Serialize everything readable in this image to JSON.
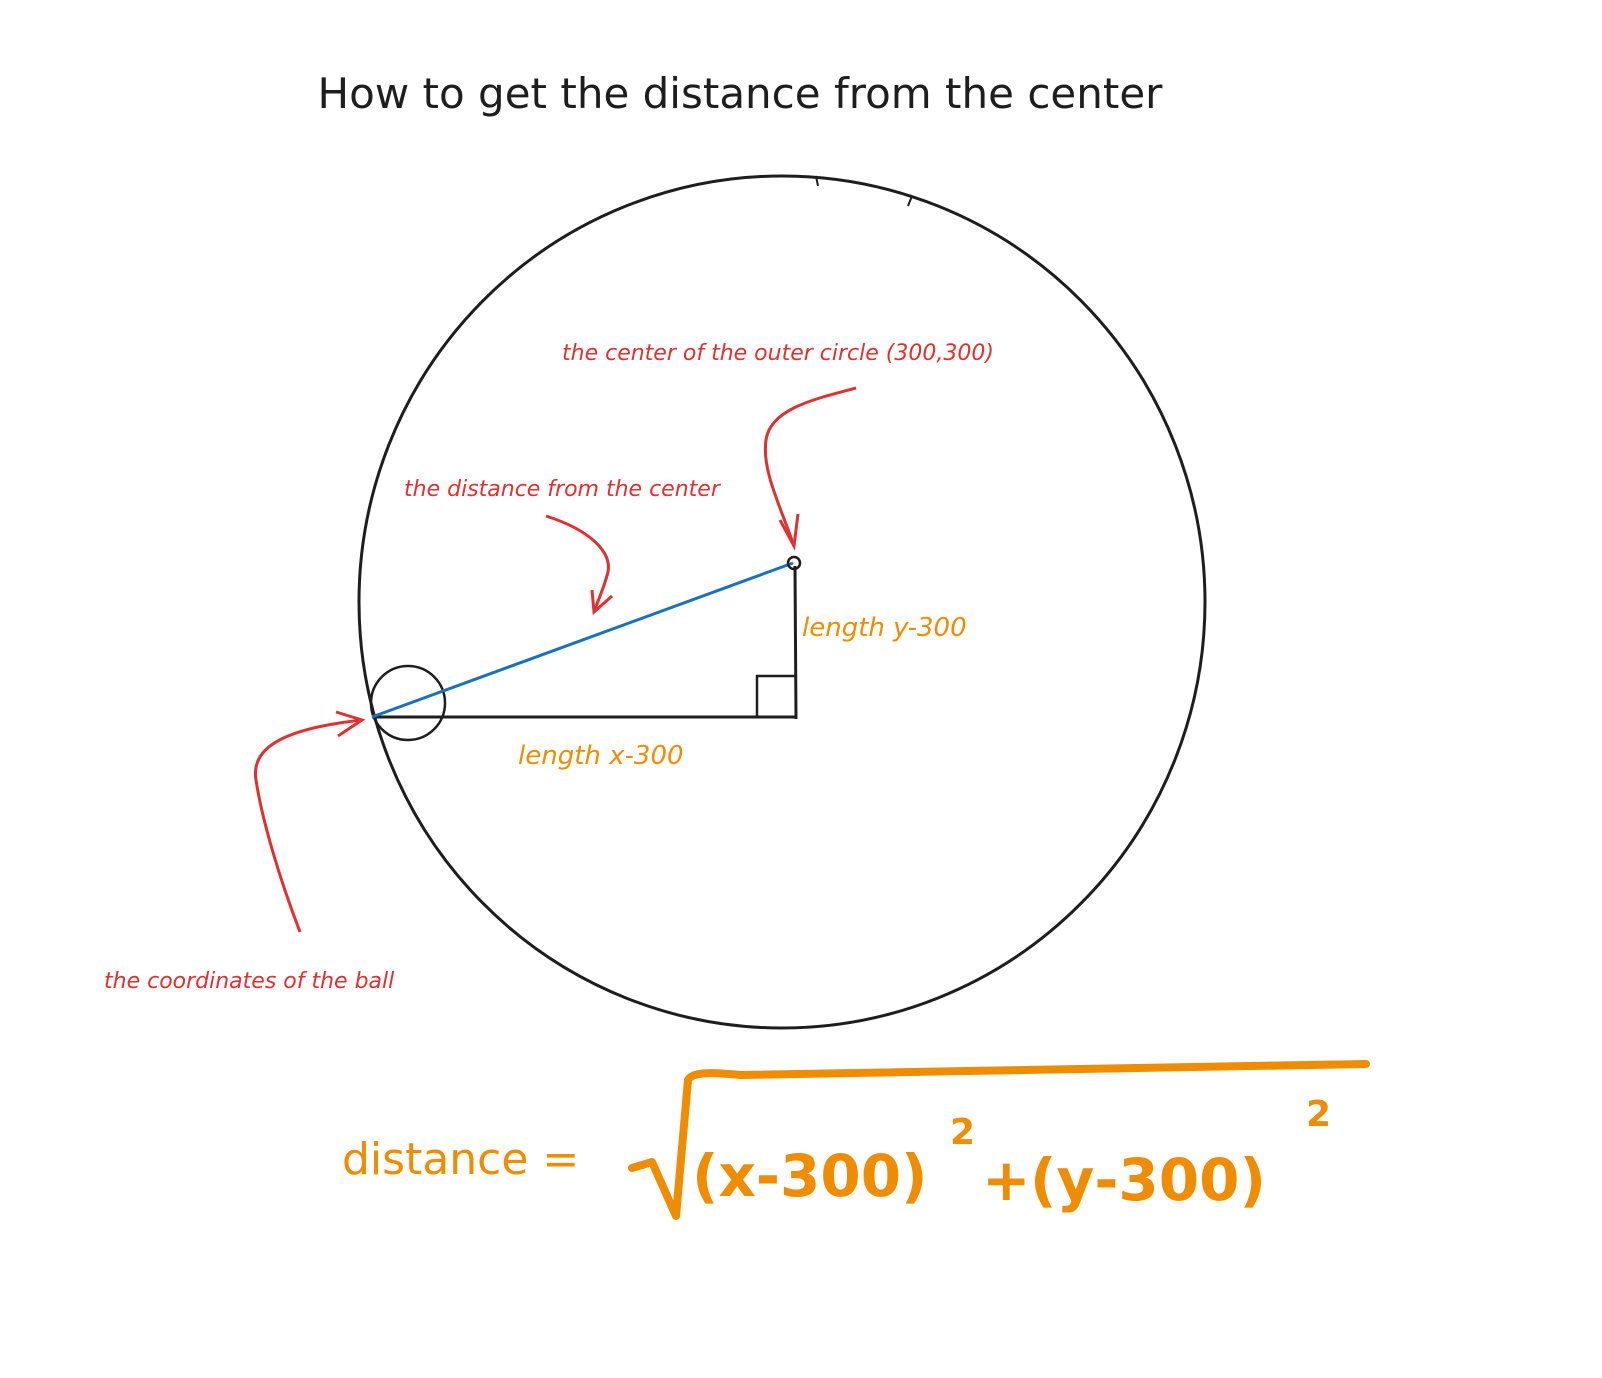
{
  "title": "How to get the distance from the center",
  "annotations": {
    "center_label": "the center of the outer circle (300,300)",
    "distance_label": "the distance from the center",
    "ball_label": "the coordinates of the ball",
    "length_y": "length y-300",
    "length_x": "length x-300"
  },
  "formula": {
    "label": "distance =",
    "term1": "(x-300)",
    "plus": "+",
    "term2": "(y-300)",
    "exp1": "2",
    "exp2": "2"
  },
  "colors": {
    "ink": "#1e1e1e",
    "annotation": "#e03131",
    "measurement": "#f08c00",
    "hypotenuse": "#1971c2"
  }
}
